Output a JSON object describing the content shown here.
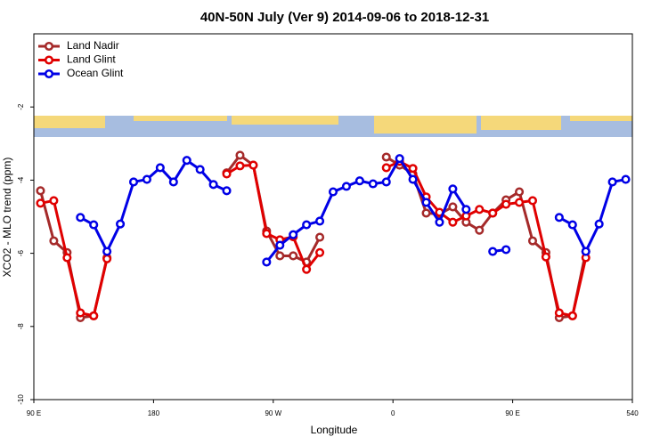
{
  "chart_data": {
    "type": "line",
    "title": "40N-50N July (Ver 9)   2014-09-06 to 2018-12-31",
    "xlabel": "Longitude",
    "ylabel": "XCO2 - MLO trend (ppm)",
    "x": [
      95,
      105,
      115,
      125,
      135,
      145,
      155,
      165,
      175,
      185,
      195,
      205,
      215,
      225,
      235,
      245,
      255,
      265,
      275,
      285,
      295,
      305,
      315,
      325,
      335,
      345,
      355,
      365,
      375,
      385,
      395,
      405,
      415,
      425,
      435,
      445,
      455,
      465,
      475,
      485,
      495,
      505,
      515,
      525,
      535
    ],
    "series": [
      {
        "name": "Land Nadir",
        "color": "#a52a2a",
        "values": [
          -4.29,
          -5.66,
          -5.98,
          -7.76,
          -7.71,
          -6.12,
          null,
          null,
          null,
          null,
          null,
          null,
          null,
          null,
          -3.8,
          -3.32,
          -3.59,
          -5.39,
          -6.07,
          -6.07,
          -6.24,
          -5.56,
          null,
          null,
          null,
          null,
          -3.37,
          -3.59,
          -3.83,
          -4.9,
          -4.93,
          -4.73,
          -5.15,
          -5.37,
          -4.9,
          -4.54,
          -4.32,
          -5.66,
          -5.98,
          -7.76,
          -7.71,
          -5.95,
          null,
          null,
          null
        ]
      },
      {
        "name": "Land Glint",
        "color": "#e00000",
        "values": [
          -4.63,
          -4.56,
          -6.12,
          -7.63,
          -7.71,
          -6.15,
          null,
          null,
          null,
          null,
          null,
          null,
          null,
          null,
          -3.83,
          -3.61,
          -3.59,
          -5.46,
          -5.63,
          -5.55,
          -6.44,
          -5.98,
          null,
          null,
          null,
          null,
          -3.66,
          -3.49,
          -3.68,
          -4.46,
          -4.88,
          -5.15,
          -4.98,
          -4.8,
          -4.9,
          -4.66,
          -4.61,
          -4.56,
          -6.1,
          -7.63,
          -7.71,
          -6.12,
          null,
          null,
          null
        ]
      },
      {
        "name": "Ocean Glint",
        "color": "#0000e6",
        "values": [
          null,
          null,
          null,
          -5.02,
          -5.22,
          -5.95,
          -5.2,
          -4.05,
          -3.98,
          -3.66,
          -4.05,
          -3.46,
          -3.71,
          -4.12,
          -4.29,
          null,
          null,
          -6.24,
          -5.78,
          -5.49,
          -5.22,
          -5.12,
          -4.32,
          -4.17,
          -4.02,
          -4.1,
          -4.05,
          -3.41,
          -3.98,
          -4.61,
          -5.15,
          -4.24,
          -4.8,
          null,
          -5.95,
          -5.9,
          null,
          null,
          null,
          -5.02,
          -5.22,
          -5.95,
          -5.2,
          -4.05,
          -3.98
        ]
      }
    ],
    "xlim": [
      90,
      540
    ],
    "xticks": [
      {
        "value": 90,
        "label": "90 E"
      },
      180,
      {
        "value": 270,
        "label": "90 W"
      },
      {
        "value": 360,
        "label": "0"
      },
      {
        "value": 450,
        "label": "90 E"
      },
      540
    ],
    "ylim": [
      -10,
      0
    ],
    "yticks": [
      -2,
      -4,
      -6,
      -8,
      -10
    ],
    "legend": "top-left"
  }
}
